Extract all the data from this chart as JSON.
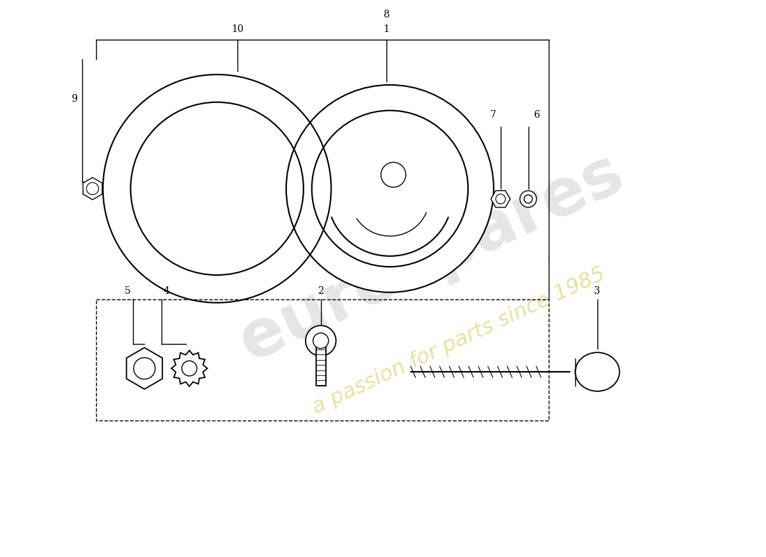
{
  "bg_color": "#ffffff",
  "line_color": "#000000",
  "figsize": [
    11.0,
    8.0
  ],
  "dpi": 100,
  "lw": 1.0
}
